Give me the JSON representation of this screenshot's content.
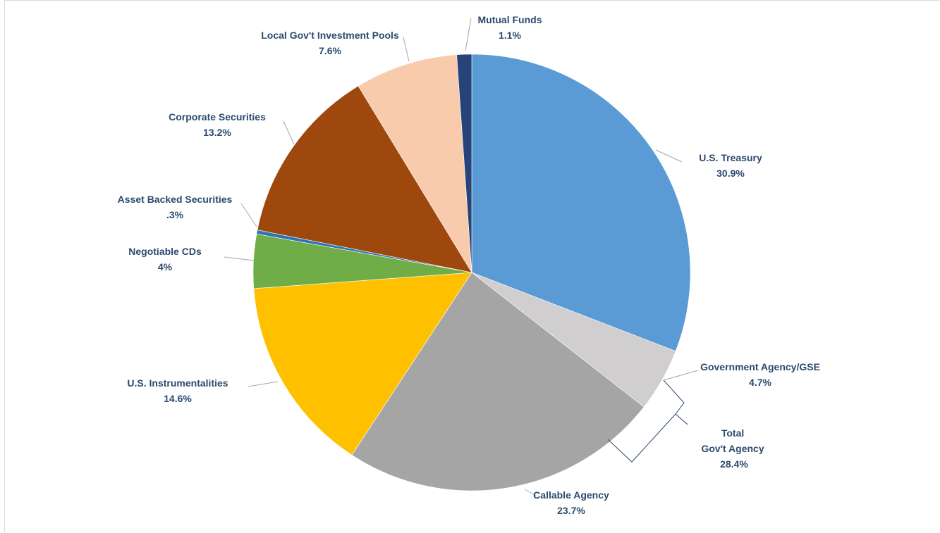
{
  "chart_data": {
    "type": "pie",
    "title": "",
    "slices": [
      {
        "label": "U.S. Treasury",
        "value": 30.9,
        "value_label": "30.9%",
        "color": "#5b9bd5"
      },
      {
        "label": "Government Agency/GSE",
        "value": 4.7,
        "value_label": "4.7%",
        "color": "#d0cece"
      },
      {
        "label": "Callable Agency",
        "value": 23.7,
        "value_label": "23.7%",
        "color": "#a5a5a5"
      },
      {
        "label": "U.S. Instrumentalities",
        "value": 14.6,
        "value_label": "14.6%",
        "color": "#ffc000"
      },
      {
        "label": "Negotiable CDs",
        "value": 4,
        "value_label": "4%",
        "color": "#70ad47"
      },
      {
        "label": "Asset Backed Securities",
        "value": 0.3,
        "value_label": ".3%",
        "color": "#2e75b6"
      },
      {
        "label": "Corporate Securities",
        "value": 13.2,
        "value_label": "13.2%",
        "color": "#9e480e"
      },
      {
        "label": "Local Gov't Investment Pools",
        "value": 7.6,
        "value_label": "7.6%",
        "color": "#f8cbad"
      },
      {
        "label": "Mutual Funds",
        "value": 1.1,
        "value_label": "1.1%",
        "color": "#264478"
      }
    ],
    "group_annotation": {
      "label_lines": [
        "Total",
        "Gov't Agency"
      ],
      "value_label": "28.4%",
      "members": [
        "Government Agency/GSE",
        "Callable Agency"
      ]
    },
    "label_color": "#2b4a6f"
  }
}
